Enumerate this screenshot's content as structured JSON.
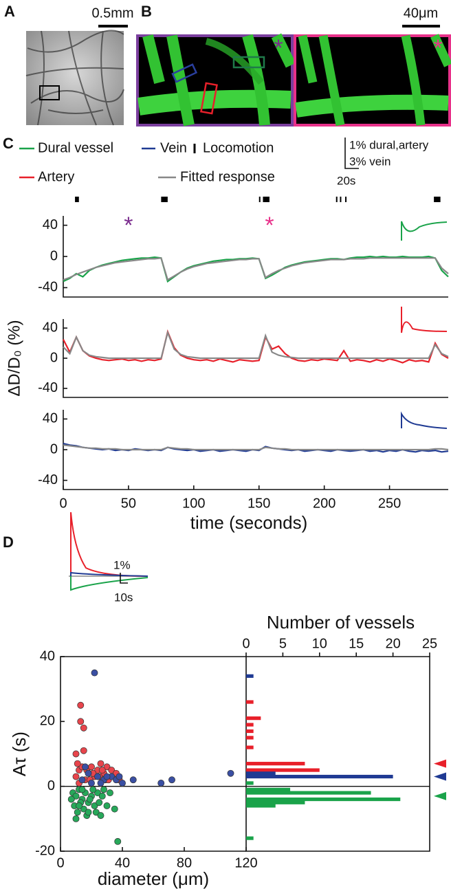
{
  "panel_labels": [
    "A",
    "B",
    "C",
    "D"
  ],
  "panel_a": {
    "scale_label": "0.5mm"
  },
  "panel_b": {
    "scale_label": "40μm",
    "asterisks": [
      "*",
      "*"
    ]
  },
  "panel_c": {
    "locomotion_name": "Locomotion",
    "locomotion": [
      [
        9,
        12
      ],
      [
        75,
        80
      ],
      [
        150,
        151
      ],
      [
        153,
        158
      ],
      [
        209,
        210
      ],
      [
        212,
        213
      ],
      [
        216,
        217
      ],
      [
        284,
        289
      ]
    ],
    "scale_labels": [
      "1% dural,artery",
      "3% vein",
      "20s"
    ]
  },
  "panel_d": {
    "scale_labels": [
      "1%",
      "10s"
    ]
  },
  "chart_data": [
    {
      "type": "line",
      "xlim": [
        0,
        295
      ],
      "ylim": [
        -52,
        52
      ],
      "yticks": [
        -40,
        0,
        40
      ],
      "x": [
        0,
        5,
        10,
        15,
        20,
        25,
        30,
        35,
        40,
        45,
        50,
        55,
        60,
        65,
        70,
        75,
        80,
        85,
        90,
        95,
        100,
        105,
        110,
        115,
        120,
        125,
        130,
        135,
        140,
        145,
        150,
        155,
        160,
        165,
        170,
        175,
        180,
        185,
        190,
        195,
        200,
        205,
        210,
        215,
        220,
        225,
        230,
        235,
        240,
        245,
        250,
        255,
        260,
        265,
        270,
        275,
        280,
        285,
        290,
        295
      ],
      "annotations": [
        {
          "text": "*",
          "x": 50,
          "color": "#7b2d8e"
        },
        {
          "text": "*",
          "x": 158,
          "color": "#e8318a"
        }
      ],
      "series": [
        {
          "name": "Dural vessel",
          "color": "#1aa34a",
          "values": [
            -32,
            -28,
            -22,
            -26,
            -18,
            -14,
            -11,
            -9,
            -7,
            -5,
            -4,
            -3,
            -2,
            -2,
            -1,
            -2,
            -32,
            -26,
            -20,
            -15,
            -12,
            -10,
            -8,
            -6,
            -5,
            -4,
            -4,
            -3,
            -3,
            -2,
            -3,
            -28,
            -24,
            -19,
            -14,
            -11,
            -9,
            -7,
            -6,
            -5,
            -4,
            -3,
            -3,
            -4,
            -2,
            -1,
            -1,
            0,
            -1,
            0,
            -1,
            -1,
            0,
            -1,
            -1,
            -1,
            0,
            -2,
            -18,
            -26
          ]
        },
        {
          "name": "Fitted response",
          "color": "#888888",
          "values": [
            -30,
            -27,
            -23,
            -20,
            -17,
            -14,
            -12,
            -10,
            -8,
            -7,
            -6,
            -5,
            -4,
            -3,
            -3,
            -2,
            -30,
            -25,
            -20,
            -16,
            -13,
            -11,
            -9,
            -8,
            -7,
            -6,
            -5,
            -4,
            -4,
            -3,
            -3,
            -27,
            -22,
            -18,
            -15,
            -12,
            -10,
            -8,
            -7,
            -6,
            -5,
            -4,
            -4,
            -4,
            -3,
            -3,
            -3,
            -2,
            -2,
            -2,
            -2,
            -2,
            -2,
            -2,
            -2,
            -2,
            -2,
            -2,
            -15,
            -22
          ]
        }
      ]
    },
    {
      "type": "line",
      "xlim": [
        0,
        295
      ],
      "ylim": [
        -52,
        52
      ],
      "yticks": [
        -40,
        0,
        40
      ],
      "ylabel": "ΔD/D₀ (%)",
      "x": [
        0,
        5,
        10,
        15,
        20,
        25,
        30,
        35,
        40,
        45,
        50,
        55,
        60,
        65,
        70,
        75,
        80,
        85,
        90,
        95,
        100,
        105,
        110,
        115,
        120,
        125,
        130,
        135,
        140,
        145,
        150,
        155,
        160,
        165,
        170,
        175,
        180,
        185,
        190,
        195,
        200,
        205,
        210,
        215,
        220,
        225,
        230,
        235,
        240,
        245,
        250,
        255,
        260,
        265,
        270,
        275,
        280,
        285,
        290,
        295
      ],
      "series": [
        {
          "name": "Artery",
          "color": "#e8202a",
          "values": [
            25,
            8,
            28,
            10,
            3,
            0,
            -2,
            -3,
            -2,
            -1,
            -3,
            -2,
            -4,
            -2,
            -3,
            -1,
            35,
            14,
            4,
            0,
            -2,
            -3,
            -2,
            -4,
            -1,
            -3,
            -5,
            -2,
            -3,
            -4,
            -3,
            28,
            12,
            16,
            6,
            0,
            -3,
            -4,
            -2,
            -3,
            -1,
            -2,
            -3,
            10,
            -4,
            -2,
            -3,
            -5,
            -2,
            -4,
            -1,
            -3,
            -6,
            -2,
            -4,
            -3,
            -5,
            20,
            5,
            0
          ]
        },
        {
          "color": "#888888",
          "values": [
            15,
            6,
            28,
            10,
            4,
            2,
            1,
            0,
            0,
            0,
            0,
            0,
            0,
            0,
            0,
            0,
            34,
            12,
            5,
            2,
            1,
            0,
            0,
            0,
            0,
            0,
            0,
            0,
            0,
            0,
            0,
            30,
            8,
            4,
            2,
            1,
            0,
            0,
            0,
            0,
            0,
            0,
            0,
            0,
            0,
            0,
            0,
            0,
            0,
            0,
            0,
            0,
            0,
            0,
            0,
            0,
            0,
            18,
            6,
            2
          ]
        }
      ]
    },
    {
      "type": "line",
      "xlim": [
        0,
        295
      ],
      "ylim": [
        -52,
        52
      ],
      "yticks": [
        -40,
        0,
        40
      ],
      "xticks": [
        0,
        50,
        100,
        150,
        200,
        250
      ],
      "xlabel": "time (seconds)",
      "x": [
        0,
        5,
        10,
        15,
        20,
        25,
        30,
        35,
        40,
        45,
        50,
        55,
        60,
        65,
        70,
        75,
        80,
        85,
        90,
        95,
        100,
        105,
        110,
        115,
        120,
        125,
        130,
        135,
        140,
        145,
        150,
        155,
        160,
        165,
        170,
        175,
        180,
        185,
        190,
        195,
        200,
        205,
        210,
        215,
        220,
        225,
        230,
        235,
        240,
        245,
        250,
        255,
        260,
        265,
        270,
        275,
        280,
        285,
        290,
        295
      ],
      "series": [
        {
          "name": "Vein",
          "color": "#1f3a93",
          "values": [
            8,
            6,
            5,
            3,
            2,
            1,
            0,
            1,
            -1,
            0,
            -1,
            1,
            0,
            -1,
            0,
            -1,
            3,
            1,
            0,
            -1,
            0,
            -2,
            -1,
            0,
            -2,
            -1,
            0,
            -1,
            -2,
            0,
            -1,
            4,
            2,
            1,
            0,
            -1,
            0,
            -2,
            -1,
            0,
            -1,
            -2,
            0,
            -1,
            -2,
            -1,
            0,
            -2,
            -1,
            -3,
            -1,
            -2,
            0,
            -2,
            -3,
            -1,
            -2,
            -1,
            -3,
            -2
          ]
        },
        {
          "color": "#888888",
          "values": [
            6,
            5,
            4,
            3,
            2,
            2,
            1,
            1,
            1,
            0,
            0,
            0,
            0,
            0,
            0,
            0,
            3,
            2,
            1,
            1,
            0,
            0,
            0,
            0,
            0,
            0,
            0,
            0,
            0,
            0,
            0,
            3,
            2,
            1,
            1,
            0,
            0,
            0,
            0,
            0,
            0,
            0,
            0,
            0,
            0,
            0,
            0,
            0,
            0,
            0,
            0,
            0,
            0,
            0,
            0,
            0,
            0,
            1,
            1,
            0
          ]
        }
      ]
    },
    {
      "type": "scatter",
      "xlim": [
        0,
        120
      ],
      "ylim": [
        -20,
        40
      ],
      "xticks": [
        0,
        40,
        80,
        120
      ],
      "yticks": [
        -20,
        0,
        20,
        40
      ],
      "xlabel": "diameter (μm)",
      "ylabel": "Aτ (s)",
      "zero_line": true,
      "series": [
        {
          "color": "#e8454c",
          "x": [
            13,
            13,
            15,
            10,
            15,
            12,
            10,
            14,
            17,
            18,
            20,
            22,
            24,
            26,
            28,
            30,
            33,
            36,
            38,
            16,
            19,
            11,
            25,
            29,
            12,
            31,
            21,
            27
          ],
          "values": [
            25,
            20,
            18,
            10,
            11,
            5,
            3,
            6,
            5,
            4,
            6,
            3,
            5,
            7,
            4,
            6,
            5,
            4,
            2,
            2,
            2,
            7,
            3,
            2,
            1,
            2,
            4,
            5
          ]
        },
        {
          "color": "#3a4fa3",
          "x": [
            22,
            14,
            18,
            24,
            28,
            33,
            36,
            40,
            47,
            65,
            72,
            110,
            20,
            26,
            30,
            16,
            38
          ],
          "values": [
            35,
            2,
            4,
            3,
            2,
            3,
            2,
            1,
            2,
            1,
            2,
            4,
            1,
            1,
            3,
            6,
            3
          ]
        },
        {
          "color": "#27a85a",
          "x": [
            8,
            10,
            12,
            14,
            16,
            18,
            20,
            22,
            24,
            9,
            11,
            13,
            15,
            17,
            19,
            21,
            23,
            25,
            27,
            30,
            32,
            35,
            37,
            7,
            10,
            14,
            26,
            28,
            12,
            18
          ],
          "values": [
            -2,
            -3,
            -1,
            -4,
            -2,
            -5,
            -3,
            -6,
            -2,
            -6,
            -8,
            -5,
            -7,
            -9,
            -4,
            -1,
            -8,
            -5,
            -3,
            -6,
            -2,
            -7,
            -17,
            -4,
            -10,
            -1,
            -9,
            -1,
            -6,
            -8
          ]
        }
      ]
    },
    {
      "type": "barh",
      "xlim": [
        0,
        25
      ],
      "ylim": [
        -20,
        40
      ],
      "xticks": [
        0,
        5,
        10,
        15,
        20,
        25
      ],
      "xlabel": "Number of vessels",
      "series": [
        {
          "color": "#e8202a",
          "positions": [
            26,
            21,
            19,
            17,
            15,
            12,
            7,
            5
          ],
          "values": [
            1,
            2,
            1,
            1,
            1,
            1,
            8,
            10
          ],
          "median": 7
        },
        {
          "color": "#1f3a93",
          "positions": [
            34,
            4,
            3
          ],
          "values": [
            1,
            4,
            20
          ],
          "median": 3
        },
        {
          "color": "#1aa34a",
          "positions": [
            1,
            -1,
            -2,
            -4,
            -5,
            -6,
            -16
          ],
          "values": [
            1,
            6,
            17,
            21,
            8,
            4,
            1
          ],
          "median": -3
        }
      ]
    }
  ]
}
